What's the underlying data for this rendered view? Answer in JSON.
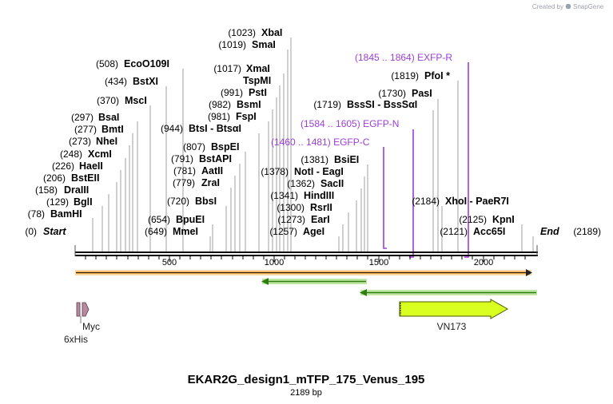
{
  "credit": "Created by",
  "brand": "SnapGene",
  "title": "EKAR2G_design1_mTFP_175_Venus_195",
  "length_label": "2189 bp",
  "start_pos": "(0)",
  "start_label": "Start",
  "end_label": "End",
  "end_pos": "(2189)",
  "ticks": [
    "500",
    "1000",
    "1500",
    "2000"
  ],
  "sites": [
    {
      "pos": "(78)",
      "name": "BamHI"
    },
    {
      "pos": "(129)",
      "name": "BglI"
    },
    {
      "pos": "(158)",
      "name": "DraIII"
    },
    {
      "pos": "(206)",
      "name": "BstEII"
    },
    {
      "pos": "(226)",
      "name": "HaeII"
    },
    {
      "pos": "(248)",
      "name": "XcmI"
    },
    {
      "pos": "(273)",
      "name": "NheI"
    },
    {
      "pos": "(277)",
      "name": "BmtI"
    },
    {
      "pos": "(297)",
      "name": "BsaI"
    },
    {
      "pos": "(370)",
      "name": "MscI"
    },
    {
      "pos": "(434)",
      "name": "BstXI"
    },
    {
      "pos": "(508)",
      "name": "EcoO109I"
    },
    {
      "pos": "(649)",
      "name": "MmeI"
    },
    {
      "pos": "(654)",
      "name": "BpuEI"
    },
    {
      "pos": "(720)",
      "name": "BbsI"
    },
    {
      "pos": "(779)",
      "name": "ZraI"
    },
    {
      "pos": "(781)",
      "name": "AatII"
    },
    {
      "pos": "(791)",
      "name": "BstAPI"
    },
    {
      "pos": "(807)",
      "name": "BspEI"
    },
    {
      "pos": "(944)",
      "name": "BtsI - BtsαI"
    },
    {
      "pos": "(981)",
      "name": "FspI"
    },
    {
      "pos": "(982)",
      "name": "BsmI"
    },
    {
      "pos": "(991)",
      "name": "PstI"
    },
    {
      "pos": "",
      "name": "TspMI"
    },
    {
      "pos": "(1017)",
      "name": "XmaI"
    },
    {
      "pos": "(1019)",
      "name": "SmaI"
    },
    {
      "pos": "(1023)",
      "name": "XbaI"
    },
    {
      "pos": "(1257)",
      "name": "AgeI"
    },
    {
      "pos": "(1273)",
      "name": "EarI"
    },
    {
      "pos": "(1300)",
      "name": "RsrII"
    },
    {
      "pos": "(1341)",
      "name": "HindIII"
    },
    {
      "pos": "(1362)",
      "name": "SacII"
    },
    {
      "pos": "(1378)",
      "name": "NotI - EagI"
    },
    {
      "pos": "(1381)",
      "name": "BsiEI"
    },
    {
      "pos": "(1719)",
      "name": "BssSI - BssSαI"
    },
    {
      "pos": "(1730)",
      "name": "PasI"
    },
    {
      "pos": "(1819)",
      "name": "PfoI *"
    },
    {
      "pos": "(2184)",
      "name": "XhoI - PaeR7I"
    },
    {
      "pos": "(2125)",
      "name": "KpnI"
    },
    {
      "pos": "(2121)",
      "name": "Acc65I"
    }
  ],
  "primers": [
    {
      "range": "(1460 .. 1481)",
      "name": "EGFP-C"
    },
    {
      "range": "(1584 .. 1605)",
      "name": "EGFP-N"
    },
    {
      "range": "(1845 .. 1864)",
      "name": "EXFP-R"
    }
  ],
  "features": [
    {
      "name": "Myc"
    },
    {
      "name": "6xHis"
    },
    {
      "name": "VN173"
    }
  ],
  "colors": {
    "orf_fill": "#f5a43a",
    "primer_bar": "#48a81e",
    "primer_bar_light": "#bfe6a3",
    "vn173_fill": "#d8ff1f",
    "tag_fill": "#b88aa0",
    "primer_text": "#9b3fd6"
  }
}
